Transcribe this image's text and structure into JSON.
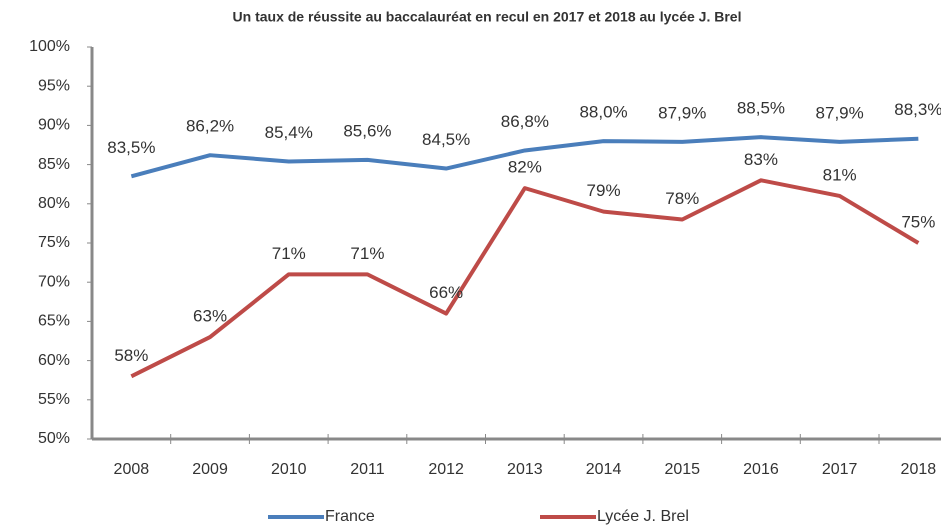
{
  "chart_data": {
    "type": "line",
    "title": "Un taux de réussite au baccalauréat en recul en 2017 et 2018 au lycée J. Brel",
    "categories": [
      "2008",
      "2009",
      "2010",
      "2011",
      "2012",
      "2013",
      "2014",
      "2015",
      "2016",
      "2017",
      "2018"
    ],
    "series": [
      {
        "name": "France",
        "color": "#4a7ebb",
        "values": [
          83.5,
          86.2,
          85.4,
          85.6,
          84.5,
          86.8,
          88.0,
          87.9,
          88.5,
          87.9,
          88.3
        ],
        "value_labels": [
          "83,5%",
          "86,2%",
          "85,4%",
          "85,6%",
          "84,5%",
          "86,8%",
          "88,0%",
          "87,9%",
          "88,5%",
          "87,9%",
          "88,3%"
        ]
      },
      {
        "name": "Lycée J. Brel",
        "color": "#be4b48",
        "values": [
          58,
          63,
          71,
          71,
          66,
          82,
          79,
          78,
          83,
          81,
          75
        ],
        "value_labels": [
          "58%",
          "63%",
          "71%",
          "71%",
          "66%",
          "82%",
          "79%",
          "78%",
          "83%",
          "81%",
          "75%"
        ]
      }
    ],
    "ylim": [
      50,
      100
    ],
    "yticks": [
      {
        "value": 50,
        "label": "50%"
      },
      {
        "value": 55,
        "label": "55%"
      },
      {
        "value": 60,
        "label": "60%"
      },
      {
        "value": 65,
        "label": "65%"
      },
      {
        "value": 70,
        "label": "70%"
      },
      {
        "value": 75,
        "label": "75%"
      },
      {
        "value": 80,
        "label": "80%"
      },
      {
        "value": 85,
        "label": "85%"
      },
      {
        "value": 90,
        "label": "90%"
      },
      {
        "value": 95,
        "label": "95%"
      },
      {
        "value": 100,
        "label": "100%"
      }
    ],
    "grid": false,
    "legend": "bottom"
  }
}
